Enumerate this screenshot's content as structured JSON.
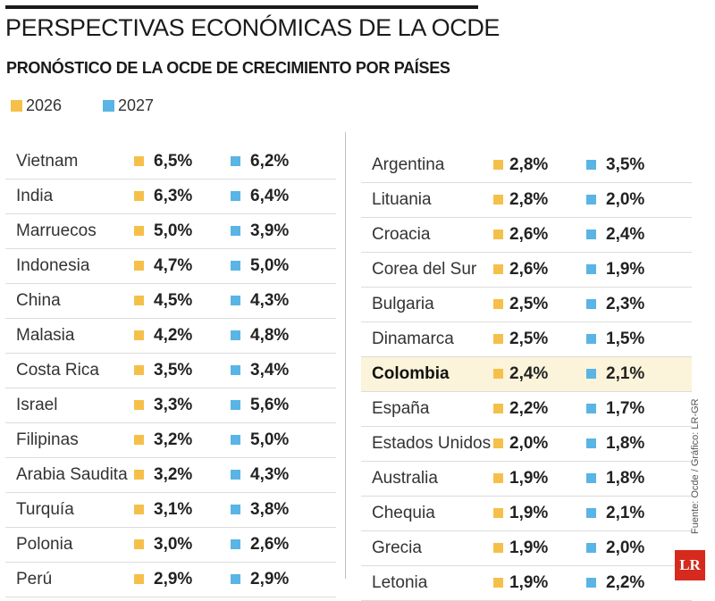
{
  "header": {
    "title": "PERSPECTIVAS ECONÓMICAS DE LA OCDE",
    "subtitle": "PRONÓSTICO DE LA OCDE DE CRECIMIENTO POR PAÍSES"
  },
  "colors": {
    "y2026": "#f5c04a",
    "y2027": "#5ab4e5",
    "highlight": "#fbf4da",
    "brand": "#d72a1e"
  },
  "chart_data": {
    "type": "table",
    "title": "PERSPECTIVAS ECONÓMICAS DE LA OCDE",
    "subtitle": "PRONÓSTICO DE LA OCDE DE CRECIMIENTO POR PAÍSES",
    "legend": [
      {
        "label": "2026",
        "color": "#f5c04a"
      },
      {
        "label": "2027",
        "color": "#5ab4e5"
      }
    ],
    "legend_position": "top-left",
    "highlighted": "Colombia",
    "columns": [
      [
        {
          "country": "Vietnam",
          "v2026": "6,5%",
          "v2027": "6,2%"
        },
        {
          "country": "India",
          "v2026": "6,3%",
          "v2027": "6,4%"
        },
        {
          "country": "Marruecos",
          "v2026": "5,0%",
          "v2027": "3,9%"
        },
        {
          "country": "Indonesia",
          "v2026": "4,7%",
          "v2027": "5,0%"
        },
        {
          "country": "China",
          "v2026": "4,5%",
          "v2027": "4,3%"
        },
        {
          "country": "Malasia",
          "v2026": "4,2%",
          "v2027": "4,8%"
        },
        {
          "country": "Costa Rica",
          "v2026": "3,5%",
          "v2027": "3,4%"
        },
        {
          "country": "Israel",
          "v2026": "3,3%",
          "v2027": "5,6%"
        },
        {
          "country": "Filipinas",
          "v2026": "3,2%",
          "v2027": "5,0%"
        },
        {
          "country": "Arabia Saudita",
          "v2026": "3,2%",
          "v2027": "4,3%"
        },
        {
          "country": "Turquía",
          "v2026": "3,1%",
          "v2027": "3,8%"
        },
        {
          "country": "Polonia",
          "v2026": "3,0%",
          "v2027": "2,6%"
        },
        {
          "country": "Perú",
          "v2026": "2,9%",
          "v2027": "2,9%"
        }
      ],
      [
        {
          "country": "Argentina",
          "v2026": "2,8%",
          "v2027": "3,5%"
        },
        {
          "country": "Lituania",
          "v2026": "2,8%",
          "v2027": "2,0%"
        },
        {
          "country": "Croacia",
          "v2026": "2,6%",
          "v2027": "2,4%"
        },
        {
          "country": "Corea del Sur",
          "v2026": "2,6%",
          "v2027": "1,9%"
        },
        {
          "country": "Bulgaria",
          "v2026": "2,5%",
          "v2027": "2,3%"
        },
        {
          "country": "Dinamarca",
          "v2026": "2,5%",
          "v2027": "1,5%"
        },
        {
          "country": "Colombia",
          "v2026": "2,4%",
          "v2027": "2,1%"
        },
        {
          "country": "España",
          "v2026": "2,2%",
          "v2027": "1,7%"
        },
        {
          "country": "Estados Unidos",
          "v2026": "2,0%",
          "v2027": "1,8%"
        },
        {
          "country": "Australia",
          "v2026": "1,9%",
          "v2027": "1,8%"
        },
        {
          "country": "Chequia",
          "v2026": "1,9%",
          "v2027": "2,1%"
        },
        {
          "country": "Grecia",
          "v2026": "1,9%",
          "v2027": "2,0%"
        },
        {
          "country": "Letonia",
          "v2026": "1,9%",
          "v2027": "2,2%"
        }
      ]
    ]
  },
  "footer": {
    "source": "Fuente: Ocde / Gráfico: LR-GR",
    "logo": "LR"
  }
}
